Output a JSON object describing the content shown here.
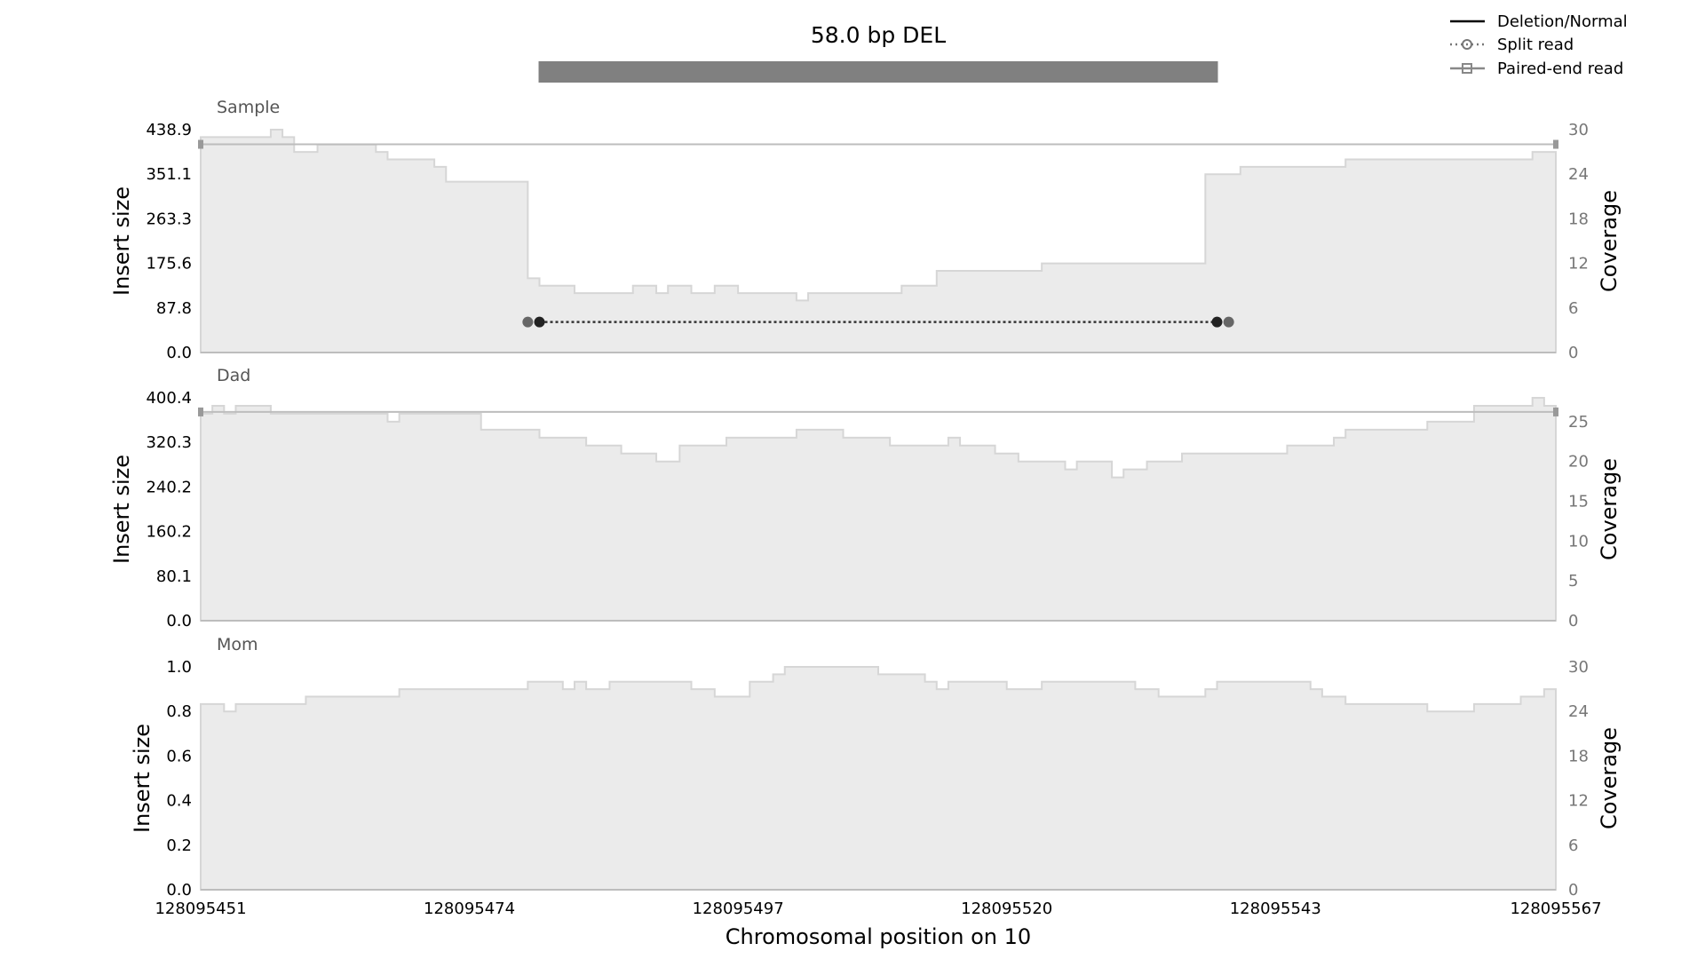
{
  "chart_data": {
    "type": "area",
    "title": "58.0 bp DEL",
    "variant_bar": {
      "start": 128095480,
      "end": 128095538,
      "color": "#808080"
    },
    "xlabel": "Chromosomal position on 10",
    "xlim": [
      128095451,
      128095567
    ],
    "xticks": [
      "128095451",
      "128095474",
      "128095497",
      "128095520",
      "128095543",
      "128095567"
    ],
    "legend": {
      "placement": "top-right",
      "items": [
        {
          "label": "Deletion/Normal",
          "style": "solid"
        },
        {
          "label": "Split read",
          "style": "dotted-circle"
        },
        {
          "label": "Paired-end read",
          "style": "solid-square"
        }
      ]
    },
    "colors": {
      "coverage_fill": "#ebebeb",
      "coverage_line": "#d6d6d6",
      "read_line": "#bdbdbd",
      "split_dark": "#222222",
      "split_light": "#666666"
    },
    "panels": [
      {
        "name": "Sample",
        "ylabel": "Insert size",
        "y2label": "Coverage",
        "ylim": [
          0,
          438.9
        ],
        "yticks": [
          "0.0",
          "87.8",
          "175.6",
          "263.3",
          "351.1",
          "438.9"
        ],
        "y2lim": [
          0,
          30
        ],
        "y2ticks": [
          "0",
          "6",
          "12",
          "18",
          "24",
          "30"
        ],
        "coverage_steps": [
          [
            128095451,
            29
          ],
          [
            128095454,
            29
          ],
          [
            128095457,
            30
          ],
          [
            128095458,
            29
          ],
          [
            128095459,
            27
          ],
          [
            128095461,
            28
          ],
          [
            128095466,
            27
          ],
          [
            128095467,
            26
          ],
          [
            128095471,
            25
          ],
          [
            128095472,
            23
          ],
          [
            128095479,
            10
          ],
          [
            128095480,
            9
          ],
          [
            128095483,
            8
          ],
          [
            128095488,
            9
          ],
          [
            128095490,
            8
          ],
          [
            128095491,
            9
          ],
          [
            128095493,
            8
          ],
          [
            128095495,
            9
          ],
          [
            128095497,
            8
          ],
          [
            128095502,
            7
          ],
          [
            128095503,
            8
          ],
          [
            128095511,
            9
          ],
          [
            128095514,
            11
          ],
          [
            128095523,
            12
          ],
          [
            128095537,
            24
          ],
          [
            128095540,
            25
          ],
          [
            128095549,
            26
          ],
          [
            128095565,
            27
          ]
        ],
        "paired_end_reads": [
          {
            "y": 410,
            "x_start": 128095451,
            "x_end": 128095567
          }
        ],
        "split_reads": [
          {
            "y": 60,
            "x_start": 128095480,
            "x_end": 128095538,
            "x_start_outer": 128095479,
            "x_end_outer": 128095539
          }
        ]
      },
      {
        "name": "Dad",
        "ylabel": "Insert size",
        "y2label": "Coverage",
        "ylim": [
          0,
          400.4
        ],
        "yticks": [
          "0.0",
          "80.1",
          "160.2",
          "240.2",
          "320.3",
          "400.4"
        ],
        "y2lim": [
          0,
          28
        ],
        "y2ticks": [
          "0",
          "5",
          "10",
          "15",
          "20",
          "25"
        ],
        "coverage_steps": [
          [
            128095451,
            26
          ],
          [
            128095452,
            27
          ],
          [
            128095453,
            26
          ],
          [
            128095454,
            27
          ],
          [
            128095457,
            26
          ],
          [
            128095467,
            25
          ],
          [
            128095468,
            26
          ],
          [
            128095475,
            24
          ],
          [
            128095480,
            23
          ],
          [
            128095484,
            22
          ],
          [
            128095487,
            21
          ],
          [
            128095490,
            20
          ],
          [
            128095492,
            22
          ],
          [
            128095496,
            23
          ],
          [
            128095502,
            24
          ],
          [
            128095506,
            23
          ],
          [
            128095510,
            22
          ],
          [
            128095515,
            23
          ],
          [
            128095516,
            22
          ],
          [
            128095519,
            21
          ],
          [
            128095521,
            20
          ],
          [
            128095525,
            19
          ],
          [
            128095526,
            20
          ],
          [
            128095529,
            18
          ],
          [
            128095530,
            19
          ],
          [
            128095532,
            20
          ],
          [
            128095535,
            21
          ],
          [
            128095544,
            22
          ],
          [
            128095548,
            23
          ],
          [
            128095549,
            24
          ],
          [
            128095556,
            25
          ],
          [
            128095560,
            27
          ],
          [
            128095565,
            28
          ],
          [
            128095566,
            27
          ]
        ],
        "paired_end_reads": [
          {
            "y": 375,
            "x_start": 128095451,
            "x_end": 128095567
          }
        ],
        "split_reads": []
      },
      {
        "name": "Mom",
        "ylabel": "Insert size",
        "y2label": "Coverage",
        "ylim": [
          0,
          1.0
        ],
        "yticks": [
          "0.0",
          "0.2",
          "0.4",
          "0.6",
          "0.8",
          "1.0"
        ],
        "y2lim": [
          0,
          30
        ],
        "y2ticks": [
          "0",
          "6",
          "12",
          "18",
          "24",
          "30"
        ],
        "coverage_steps": [
          [
            128095451,
            25
          ],
          [
            128095453,
            24
          ],
          [
            128095454,
            25
          ],
          [
            128095460,
            26
          ],
          [
            128095468,
            27
          ],
          [
            128095479,
            28
          ],
          [
            128095482,
            27
          ],
          [
            128095483,
            28
          ],
          [
            128095484,
            27
          ],
          [
            128095486,
            28
          ],
          [
            128095493,
            27
          ],
          [
            128095495,
            26
          ],
          [
            128095498,
            28
          ],
          [
            128095500,
            29
          ],
          [
            128095501,
            30
          ],
          [
            128095509,
            29
          ],
          [
            128095513,
            28
          ],
          [
            128095514,
            27
          ],
          [
            128095515,
            28
          ],
          [
            128095520,
            27
          ],
          [
            128095523,
            28
          ],
          [
            128095531,
            27
          ],
          [
            128095533,
            26
          ],
          [
            128095537,
            27
          ],
          [
            128095538,
            28
          ],
          [
            128095546,
            27
          ],
          [
            128095547,
            26
          ],
          [
            128095549,
            25
          ],
          [
            128095556,
            24
          ],
          [
            128095560,
            25
          ],
          [
            128095564,
            26
          ],
          [
            128095566,
            27
          ]
        ],
        "paired_end_reads": [],
        "split_reads": []
      }
    ]
  }
}
